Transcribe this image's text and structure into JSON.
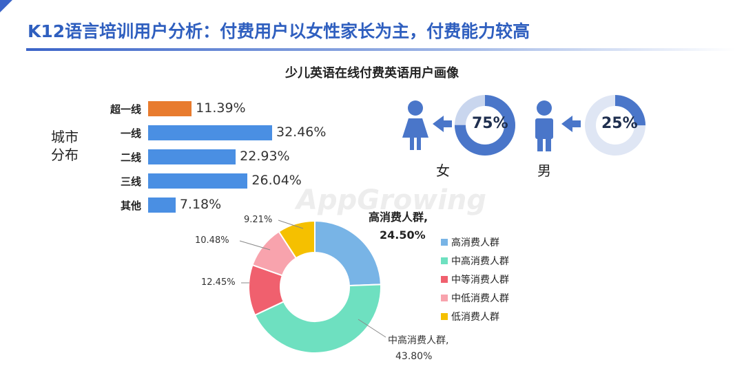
{
  "header": {
    "title": "K12语言培训用户分析：付费用户以女性家长为主，付费能力较高",
    "subtitle": "少儿英语在线付费英语用户画像",
    "accent_color": "#2f5fbf"
  },
  "watermark": "AppGrowing",
  "city": {
    "label_line1": "城市",
    "label_line2": "分布"
  },
  "gender": {
    "female": {
      "label": "女",
      "percent_text": "75%",
      "share": 0.75,
      "icon": "female-person-icon",
      "color": "#4a76c9"
    },
    "male": {
      "label": "男",
      "percent_text": "25%",
      "share": 0.25,
      "icon": "male-person-icon",
      "color": "#4a76c9"
    }
  },
  "chart_data": [
    {
      "type": "bar",
      "orientation": "horizontal",
      "categories": [
        "超一线",
        "一线",
        "二线",
        "三线",
        "其他"
      ],
      "values": [
        11.39,
        32.46,
        22.93,
        26.04,
        7.18
      ],
      "value_labels": [
        "11.39%",
        "32.46%",
        "22.93%",
        "26.04%",
        "7.18%"
      ],
      "colors": [
        "#e87b2e",
        "#4a8fe3",
        "#4a8fe3",
        "#4a8fe3",
        "#4a8fe3"
      ],
      "xlim": [
        0,
        40
      ]
    },
    {
      "type": "pie",
      "donut": true,
      "categories": [
        "高消费人群",
        "中高消费人群",
        "中等消费人群",
        "中低消费人群",
        "低消费人群"
      ],
      "values": [
        24.5,
        43.8,
        12.45,
        10.48,
        9.21
      ],
      "colors": [
        "#78b4e6",
        "#6ee0c0",
        "#f0606e",
        "#f8a3ad",
        "#f5c000"
      ],
      "labels": {
        "high_name": "高消费人群,",
        "high_value": "24.50%",
        "mid_high_name": "中高消费人群,",
        "mid_high_value": "43.80%",
        "mid": "12.45%",
        "mid_low": "10.48%",
        "low": "9.21%"
      },
      "legend_placement": "right"
    }
  ]
}
